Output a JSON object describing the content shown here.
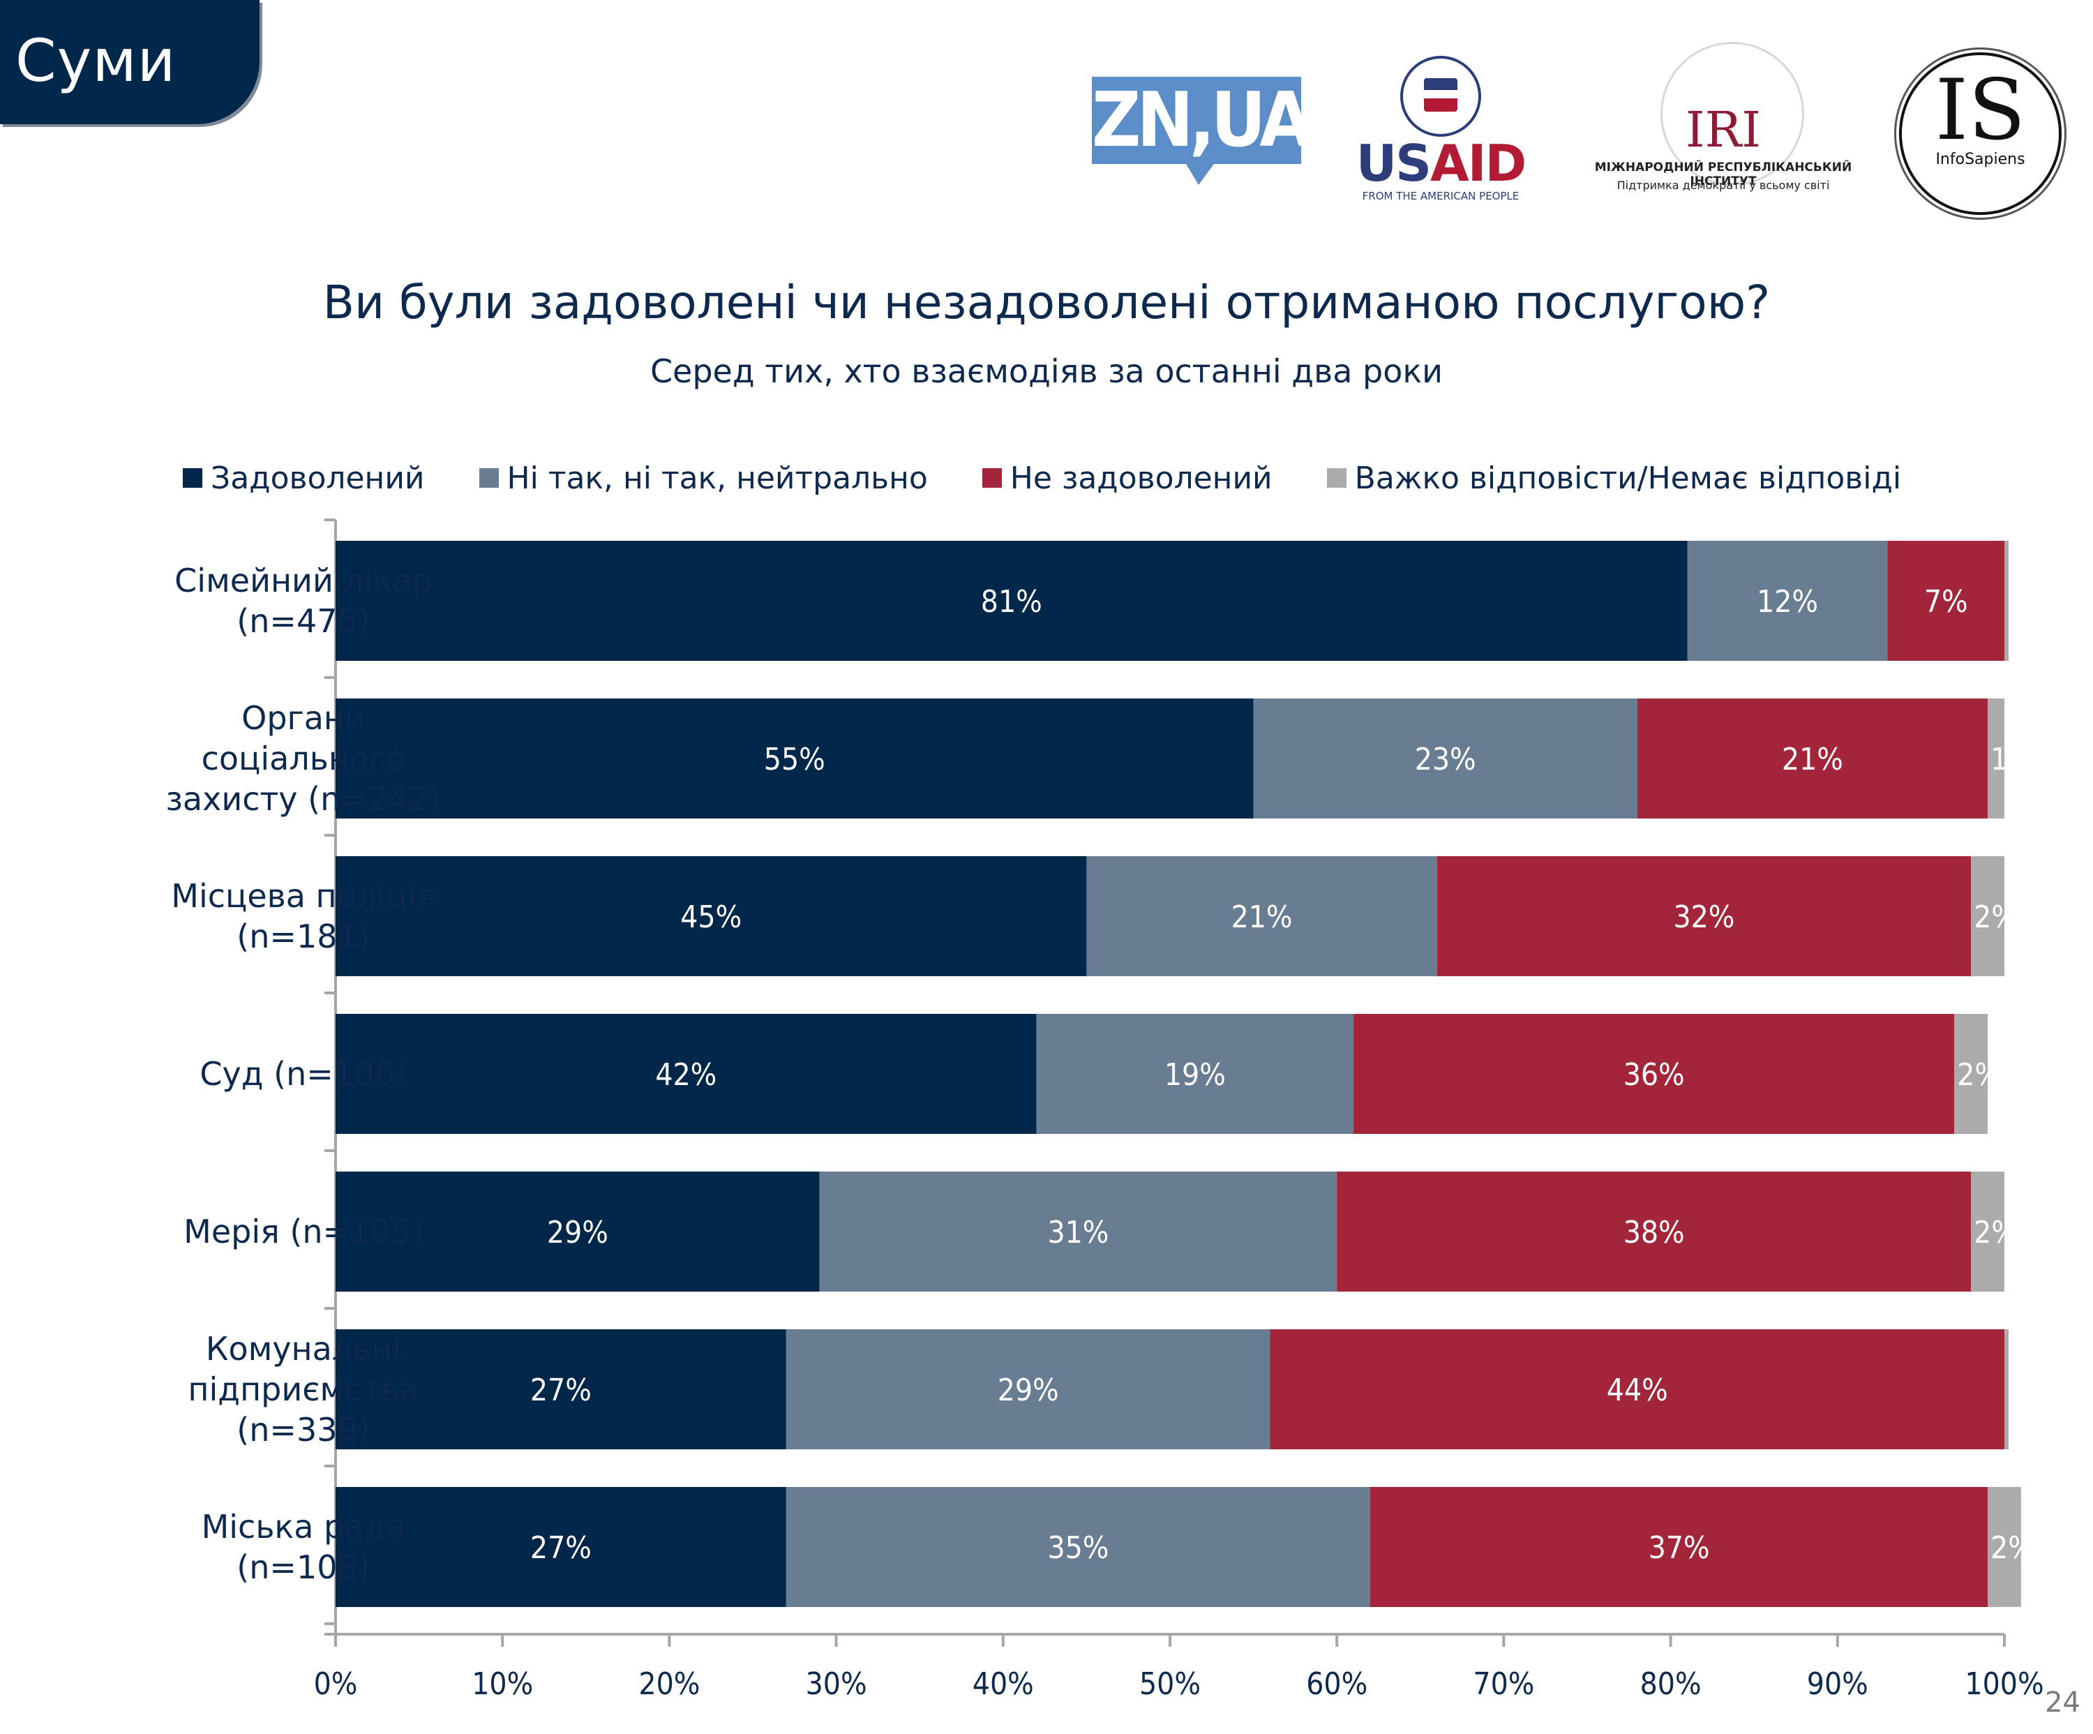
{
  "header": {
    "city": "Суми"
  },
  "logos": {
    "zn": "ZN,UA",
    "usaid": {
      "us": "US",
      "aid": "AID",
      "sub": "FROM THE AMERICAN PEOPLE"
    },
    "iri": {
      "word": "IRI",
      "sub1": "МІЖНАРОДНИЙ РЕСПУБЛІКАНСЬКИЙ ІНСТИТУТ",
      "sub2": "Підтримка демократії у всьому світі"
    },
    "infosapiens": {
      "word": "IS",
      "sub": "InfoSapiens"
    }
  },
  "page_number": "24",
  "chart_data": {
    "type": "bar",
    "orientation": "horizontal",
    "stacked": true,
    "title": "Ви були задоволені чи незадоволені отриманою послугою?",
    "subtitle": "Серед тих, хто взаємодіяв за останні два роки",
    "xlabel": "",
    "ylabel": "",
    "xlim": [
      0,
      100
    ],
    "x_ticks": [
      "0%",
      "10%",
      "20%",
      "30%",
      "40%",
      "50%",
      "60%",
      "70%",
      "80%",
      "90%",
      "100%"
    ],
    "grid": false,
    "legend_position": "top",
    "categories": [
      "Сімейний лікар\n(n=475)",
      "Органи\nсоціального\nзахисту (n=242)",
      "Місцева поліція\n(n=181)",
      "Суд (n=106)",
      "Мерія (n=105)",
      "Комунальні\nпідприємства\n(n=339)",
      "Міська рада\n(n=108)"
    ],
    "series": [
      {
        "name": "Задоволений",
        "color": "#002649",
        "values": [
          81,
          55,
          45,
          42,
          29,
          27,
          27
        ]
      },
      {
        "name": "Ні так, ні так, нейтрально",
        "color": "#687d92",
        "values": [
          12,
          23,
          21,
          19,
          31,
          29,
          35
        ]
      },
      {
        "name": "Не задоволений",
        "color": "#a32539",
        "values": [
          7,
          21,
          32,
          36,
          38,
          44,
          37
        ]
      },
      {
        "name": "Важко відповісти/Немає відповіді",
        "color": "#ababab",
        "values": [
          0,
          1,
          2,
          2,
          2,
          0,
          2
        ]
      }
    ],
    "value_suffix": "%"
  }
}
